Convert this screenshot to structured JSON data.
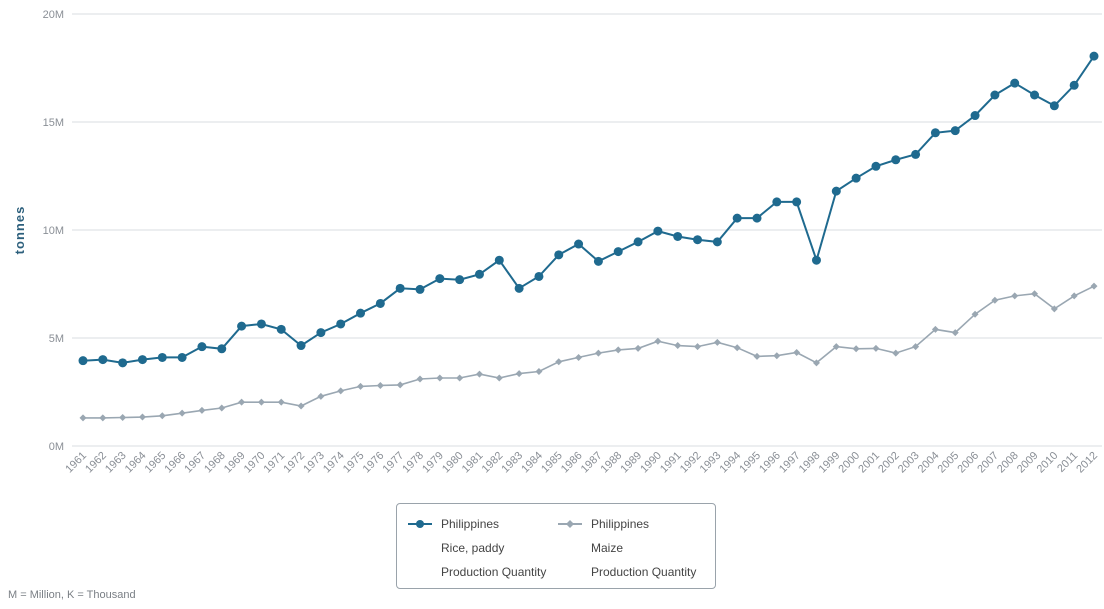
{
  "chart_data": {
    "type": "line",
    "ylabel": "tonnes",
    "ylim": [
      0,
      20000000
    ],
    "yticks": [
      {
        "value": 0,
        "label": "0M"
      },
      {
        "value": 5000000,
        "label": "5M"
      },
      {
        "value": 10000000,
        "label": "10M"
      },
      {
        "value": 15000000,
        "label": "15M"
      },
      {
        "value": 20000000,
        "label": "20M"
      }
    ],
    "grid": "horizontal",
    "legend_position": "bottom-center",
    "x": [
      1961,
      1962,
      1963,
      1964,
      1965,
      1966,
      1967,
      1968,
      1969,
      1970,
      1971,
      1972,
      1973,
      1974,
      1975,
      1976,
      1977,
      1978,
      1979,
      1980,
      1981,
      1982,
      1983,
      1984,
      1985,
      1986,
      1987,
      1988,
      1989,
      1990,
      1991,
      1992,
      1993,
      1994,
      1995,
      1996,
      1997,
      1998,
      1999,
      2000,
      2001,
      2002,
      2003,
      2004,
      2005,
      2006,
      2007,
      2008,
      2009,
      2010,
      2011,
      2012
    ],
    "series": [
      {
        "name": "Philippines Rice, paddy Production Quantity",
        "legend_lines": [
          "Philippines",
          "Rice, paddy",
          "Production Quantity"
        ],
        "color": "#1f6a8f",
        "marker": "circle",
        "values": [
          3950000,
          4000000,
          3850000,
          4000000,
          4100000,
          4100000,
          4600000,
          4500000,
          5550000,
          5650000,
          5400000,
          4650000,
          5250000,
          5650000,
          6150000,
          6600000,
          7300000,
          7250000,
          7750000,
          7700000,
          7950000,
          8600000,
          7300000,
          7850000,
          8850000,
          9350000,
          8550000,
          9000000,
          9450000,
          9950000,
          9700000,
          9550000,
          9450000,
          10550000,
          10550000,
          11300000,
          11300000,
          8600000,
          11800000,
          12400000,
          12950000,
          13250000,
          13500000,
          14500000,
          14600000,
          15300000,
          16250000,
          16800000,
          16250000,
          15750000,
          16700000,
          18050000
        ]
      },
      {
        "name": "Philippines Maize Production Quantity",
        "legend_lines": [
          "Philippines",
          "Maize",
          "Production Quantity"
        ],
        "color": "#9aa7b2",
        "marker": "diamond",
        "values": [
          1300000,
          1300000,
          1320000,
          1340000,
          1400000,
          1520000,
          1650000,
          1760000,
          2030000,
          2030000,
          2030000,
          1850000,
          2300000,
          2550000,
          2760000,
          2800000,
          2830000,
          3100000,
          3150000,
          3150000,
          3330000,
          3150000,
          3350000,
          3450000,
          3900000,
          4100000,
          4300000,
          4450000,
          4520000,
          4850000,
          4650000,
          4600000,
          4800000,
          4550000,
          4150000,
          4180000,
          4330000,
          3850000,
          4600000,
          4500000,
          4520000,
          4300000,
          4600000,
          5400000,
          5250000,
          6100000,
          6750000,
          6950000,
          7050000,
          6350000,
          6950000,
          7400000
        ]
      }
    ],
    "footnote": "M = Million, K = Thousand"
  }
}
